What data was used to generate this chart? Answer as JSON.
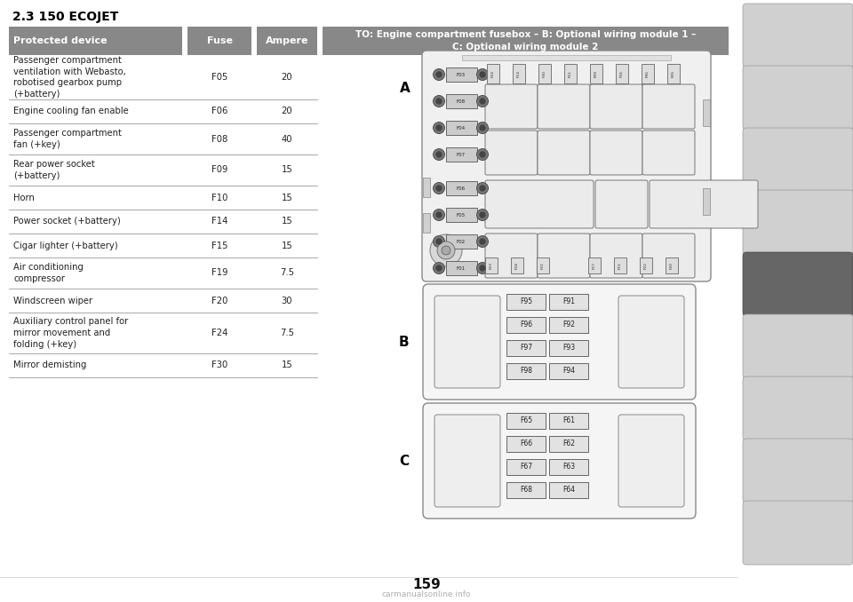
{
  "title": "2.3 150 ECOJET",
  "header_col1": "Protected device",
  "header_col2": "Fuse",
  "header_col3": "Ampere",
  "header_col4": "TO: Engine compartment fusebox – B: Optional wiring module 1 –\nC: Optional wiring module 2",
  "header_bg": "#888888",
  "header_text_color": "#ffffff",
  "table_rows": [
    {
      "device": "Passenger compartment\nventilation with Webasto,\nrobotised gearbox pump\n(+battery)",
      "fuse": "F05",
      "ampere": "20"
    },
    {
      "device": "Engine cooling fan enable",
      "fuse": "F06",
      "ampere": "20"
    },
    {
      "device": "Passenger compartment\nfan (+key)",
      "fuse": "F08",
      "ampere": "40"
    },
    {
      "device": "Rear power socket\n(+battery)",
      "fuse": "F09",
      "ampere": "15"
    },
    {
      "device": "Horn",
      "fuse": "F10",
      "ampere": "15"
    },
    {
      "device": "Power socket (+battery)",
      "fuse": "F14",
      "ampere": "15"
    },
    {
      "device": "Cigar lighter (+battery)",
      "fuse": "F15",
      "ampere": "15"
    },
    {
      "device": "Air conditioning\ncompressor",
      "fuse": "F19",
      "ampere": "7.5"
    },
    {
      "device": "Windscreen wiper",
      "fuse": "F20",
      "ampere": "30"
    },
    {
      "device": "Auxiliary control panel for\nmirror movement and\nfolding (+key)",
      "fuse": "F24",
      "ampere": "7.5"
    },
    {
      "device": "Mirror demisting",
      "fuse": "F30",
      "ampere": "15"
    }
  ],
  "bg_color": "#ffffff",
  "sidebar_active_bg": "#666666",
  "sidebar_inactive_bg": "#d0d0d0",
  "page_number": "159",
  "watermark": "carmanualsonline.info",
  "fuse_box_b_fuses": [
    [
      "F95",
      "F91"
    ],
    [
      "F96",
      "F92"
    ],
    [
      "F97",
      "F93"
    ],
    [
      "F98",
      "F94"
    ]
  ],
  "fuse_box_c_fuses": [
    [
      "F65",
      "F61"
    ],
    [
      "F66",
      "F62"
    ],
    [
      "F67",
      "F63"
    ],
    [
      "F68",
      "F64"
    ]
  ],
  "fusebox_a_left_fuses": [
    "F03",
    "F08",
    "F04",
    "F07"
  ],
  "fusebox_a_left2_fuses": [
    "F06",
    "F05",
    "F02",
    "F01"
  ],
  "fusebox_a_top_fuses": [
    "F24",
    "F14",
    "F30",
    "F11",
    "F09",
    "F16",
    "F06",
    "F05"
  ],
  "fusebox_a_bottom_fuses": [
    "F23",
    "F18",
    "F21",
    "",
    "F17",
    "F11",
    "F22",
    "F20"
  ]
}
